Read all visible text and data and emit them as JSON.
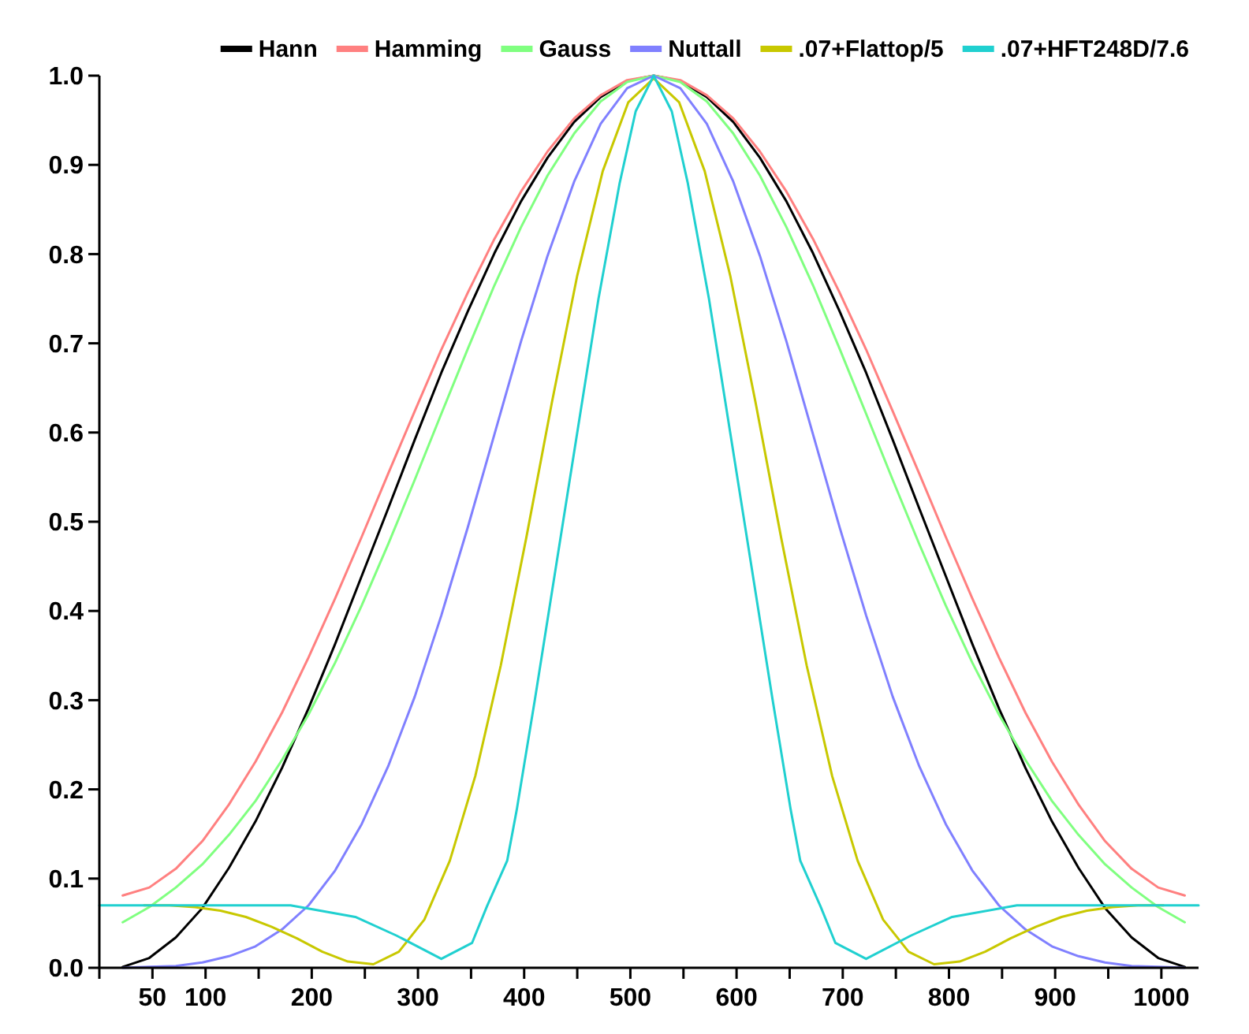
{
  "chart_data": {
    "type": "line",
    "legend": "top",
    "grid": false,
    "marker": "none",
    "line_style": "solid",
    "xlim": [
      0,
      1035
    ],
    "ylim": [
      0,
      1.0
    ],
    "xticks": [
      {
        "value": 0,
        "label": null
      },
      50,
      100,
      {
        "value": 150,
        "label": null
      },
      200,
      {
        "value": 250,
        "label": null
      },
      300,
      {
        "value": 350,
        "label": null
      },
      400,
      {
        "value": 450,
        "label": null
      },
      500,
      {
        "value": 550,
        "label": null
      },
      600,
      {
        "value": 650,
        "label": null
      },
      700,
      {
        "value": 750,
        "label": null
      },
      800,
      {
        "value": 850,
        "label": null
      },
      900,
      {
        "value": 950,
        "label": null
      },
      1000
    ],
    "yticks": [
      {
        "value": 0,
        "label": "0.0"
      },
      0.1,
      0.2,
      0.3,
      0.4,
      0.5,
      0.6,
      0.7,
      0.8,
      0.9,
      {
        "value": 1,
        "label": "1.0"
      }
    ],
    "x": [
      22,
      47,
      72,
      97,
      122,
      147,
      172,
      197,
      222,
      247,
      272,
      297,
      322,
      347,
      372,
      397,
      422,
      447,
      472,
      497,
      522,
      547,
      572,
      597,
      622,
      647,
      672,
      697,
      722,
      747,
      772,
      797,
      822,
      847,
      872,
      897,
      922,
      947,
      972,
      997,
      1022
    ],
    "series": [
      {
        "name": "Hann",
        "color": "#000000",
        "values": [
          0.001,
          0.011,
          0.034,
          0.067,
          0.112,
          0.164,
          0.224,
          0.291,
          0.363,
          0.439,
          0.515,
          0.592,
          0.667,
          0.736,
          0.801,
          0.859,
          0.908,
          0.948,
          0.976,
          0.994,
          1,
          0.994,
          0.976,
          0.948,
          0.908,
          0.859,
          0.801,
          0.736,
          0.667,
          0.592,
          0.515,
          0.439,
          0.363,
          0.291,
          0.224,
          0.164,
          0.112,
          0.067,
          0.034,
          0.011,
          0.001
        ]
      },
      {
        "name": "Hamming",
        "color": "#ff8080",
        "values": [
          0.081,
          0.09,
          0.111,
          0.142,
          0.183,
          0.231,
          0.286,
          0.348,
          0.414,
          0.483,
          0.554,
          0.624,
          0.693,
          0.757,
          0.817,
          0.87,
          0.915,
          0.952,
          0.978,
          0.995,
          1,
          0.995,
          0.978,
          0.952,
          0.915,
          0.87,
          0.817,
          0.757,
          0.693,
          0.624,
          0.554,
          0.483,
          0.414,
          0.348,
          0.286,
          0.231,
          0.183,
          0.142,
          0.111,
          0.09,
          0.081
        ]
      },
      {
        "name": "Gauss",
        "color": "#80ff80",
        "values": [
          0.051,
          0.068,
          0.09,
          0.116,
          0.149,
          0.187,
          0.233,
          0.284,
          0.342,
          0.406,
          0.475,
          0.547,
          0.621,
          0.694,
          0.765,
          0.83,
          0.888,
          0.935,
          0.971,
          0.993,
          1,
          0.993,
          0.971,
          0.935,
          0.888,
          0.83,
          0.765,
          0.694,
          0.621,
          0.547,
          0.475,
          0.406,
          0.342,
          0.284,
          0.233,
          0.187,
          0.149,
          0.116,
          0.09,
          0.068,
          0.051
        ]
      },
      {
        "name": "Nuttall",
        "color": "#8080ff",
        "values": [
          0,
          0.001,
          0.002,
          0.006,
          0.013,
          0.024,
          0.043,
          0.07,
          0.109,
          0.161,
          0.226,
          0.304,
          0.395,
          0.494,
          0.598,
          0.702,
          0.798,
          0.881,
          0.946,
          0.986,
          1,
          0.986,
          0.946,
          0.881,
          0.798,
          0.702,
          0.598,
          0.494,
          0.395,
          0.304,
          0.226,
          0.161,
          0.109,
          0.07,
          0.043,
          0.024,
          0.013,
          0.006,
          0.002,
          0.001,
          0
        ]
      },
      {
        "name": ".07+Flattop/5",
        "color": "#c8c800",
        "x": [
          42,
          66,
          90,
          114,
          138,
          162,
          186,
          210,
          234,
          258,
          282,
          306,
          330,
          354,
          378,
          402,
          426,
          450,
          474,
          498,
          522,
          546,
          570,
          594,
          618,
          642,
          666,
          690,
          714,
          738,
          762,
          786,
          810,
          834,
          858,
          882,
          906,
          930,
          954,
          978,
          1002
        ],
        "values": [
          0.07,
          0.07,
          0.068,
          0.064,
          0.057,
          0.046,
          0.033,
          0.018,
          0.007,
          0.004,
          0.018,
          0.054,
          0.12,
          0.215,
          0.339,
          0.482,
          0.633,
          0.776,
          0.893,
          0.97,
          0.997,
          0.97,
          0.893,
          0.776,
          0.633,
          0.482,
          0.339,
          0.215,
          0.12,
          0.054,
          0.018,
          0.004,
          0.007,
          0.018,
          0.033,
          0.046,
          0.057,
          0.064,
          0.068,
          0.07,
          0.07
        ]
      },
      {
        "name": ".07+HFT248D/7.6",
        "color": "#20d0d0",
        "x": [
          0,
          180,
          241,
          280,
          322,
          351,
          365,
          384,
          393,
          410,
          430,
          450,
          470,
          490,
          505,
          522,
          539,
          554,
          574,
          594,
          614,
          634,
          651,
          660,
          679,
          693,
          722,
          764,
          803,
          864,
          1035
        ],
        "values": [
          0.07,
          0.07,
          0.057,
          0.036,
          0.01,
          0.028,
          0.069,
          0.12,
          0.177,
          0.3,
          0.45,
          0.6,
          0.75,
          0.88,
          0.96,
          1,
          0.96,
          0.88,
          0.75,
          0.6,
          0.45,
          0.3,
          0.177,
          0.12,
          0.069,
          0.028,
          0.01,
          0.036,
          0.057,
          0.07,
          0.07
        ]
      }
    ]
  }
}
